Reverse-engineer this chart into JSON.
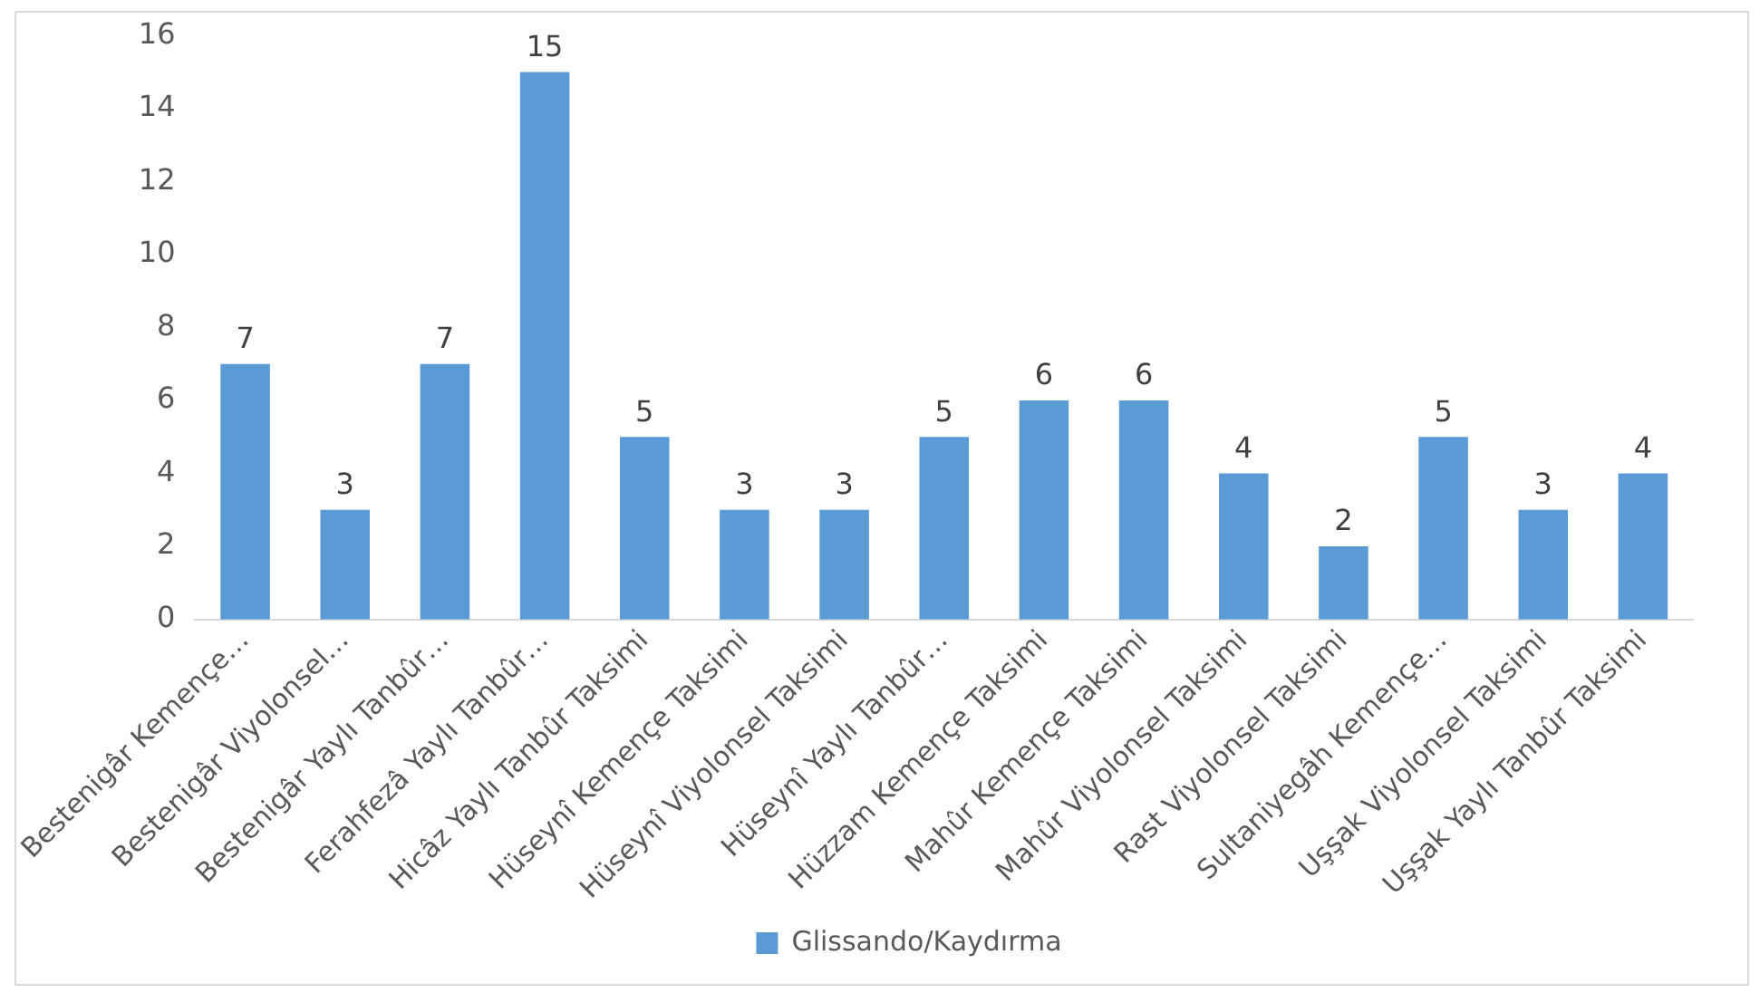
{
  "chart_data": {
    "type": "bar",
    "categories": [
      "Bestenigâr Kemençe…",
      "Bestenigâr Viyolonsel…",
      "Bestenigâr Yaylı Tanbûr…",
      "Ferahfezâ Yaylı Tanbûr…",
      "Hicâz Yaylı Tanbûr Taksimi",
      "Hüseynî Kemençe Taksimi",
      "Hüseynî Viyolonsel Taksimi",
      "Hüseynî Yaylı Tanbûr…",
      "Hüzzam Kemençe Taksimi",
      "Mahûr Kemençe Taksimi",
      "Mahûr Viyolonsel Taksimi",
      "Rast Viyolonsel Taksimi",
      "Sultaniyegâh Kemençe…",
      "Uşşak Viyolonsel Taksimi",
      "Uşşak Yaylı Tanbûr Taksimi"
    ],
    "series": [
      {
        "name": "Glissando/Kaydırma",
        "color": "#5b9bd5",
        "values": [
          7,
          3,
          7,
          15,
          5,
          3,
          3,
          5,
          6,
          6,
          4,
          2,
          5,
          3,
          4
        ]
      }
    ],
    "ylim": [
      0,
      16
    ],
    "yticks": [
      0,
      2,
      4,
      6,
      8,
      10,
      12,
      14,
      16
    ],
    "data_labels": true,
    "legend": "bottom"
  }
}
